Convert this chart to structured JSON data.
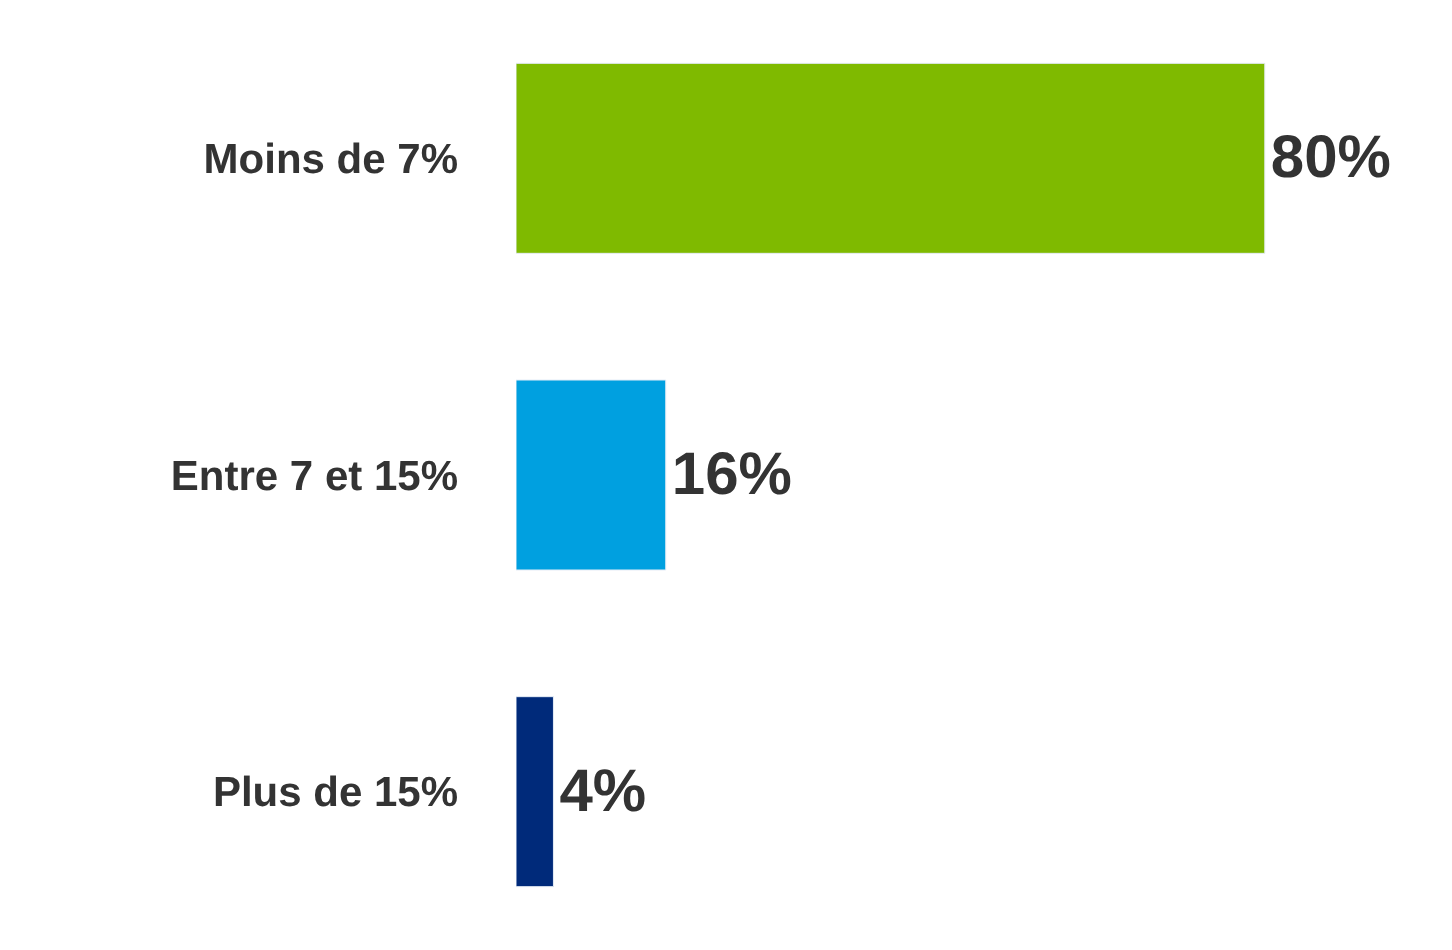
{
  "chart_data": {
    "type": "bar",
    "orientation": "horizontal",
    "categories": [
      "Moins de 7%",
      "Entre 7 et 15%",
      "Plus de 15%"
    ],
    "values": [
      80,
      16,
      4
    ],
    "colors": [
      "#7fba00",
      "#00a0e0",
      "#002a7a"
    ],
    "value_labels": [
      "80%",
      "16%",
      "4%"
    ],
    "xlim": [
      0,
      100
    ],
    "tick_labels": "y"
  }
}
